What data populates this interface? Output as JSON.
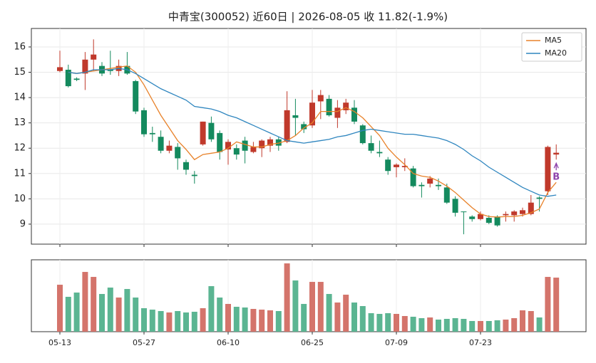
{
  "chart_data": {
    "type": "candlestick",
    "title": "中青宝(300052) 近60日 | 2026-08-05 收 11.82(-1.9%)",
    "categories": [
      "05-13",
      null,
      null,
      null,
      null,
      null,
      null,
      null,
      null,
      null,
      "05-27",
      null,
      null,
      null,
      null,
      null,
      null,
      null,
      null,
      null,
      "06-10",
      null,
      null,
      null,
      null,
      null,
      null,
      null,
      null,
      null,
      "06-25",
      null,
      null,
      null,
      null,
      null,
      null,
      null,
      null,
      null,
      "07-09",
      null,
      null,
      null,
      null,
      null,
      null,
      null,
      null,
      null,
      "07-23",
      null,
      null,
      null,
      null,
      null,
      null,
      null,
      null,
      null
    ],
    "open": [
      15.05,
      15.1,
      14.75,
      14.95,
      15.5,
      15.25,
      15.1,
      15.05,
      15.25,
      14.65,
      13.5,
      12.6,
      12.45,
      11.9,
      12.05,
      11.45,
      10.95,
      12.15,
      13.0,
      12.6,
      11.95,
      12.0,
      12.3,
      11.85,
      12.0,
      12.1,
      12.35,
      12.25,
      13.3,
      12.95,
      12.9,
      13.85,
      13.95,
      13.2,
      13.5,
      13.6,
      12.9,
      12.2,
      11.85,
      11.55,
      11.25,
      11.25,
      11.2,
      10.55,
      10.6,
      10.55,
      10.45,
      10.0,
      9.5,
      9.3,
      9.2,
      9.25,
      9.3,
      9.35,
      9.35,
      9.4,
      9.4,
      10.05,
      10.3,
      11.75
    ],
    "high": [
      15.85,
      15.3,
      14.8,
      15.8,
      16.3,
      15.4,
      15.85,
      15.5,
      15.8,
      14.7,
      13.6,
      12.85,
      12.7,
      12.3,
      12.2,
      11.55,
      11.1,
      13.05,
      13.25,
      12.7,
      12.35,
      12.15,
      12.45,
      12.25,
      12.35,
      12.45,
      12.45,
      14.25,
      13.95,
      13.05,
      14.3,
      14.3,
      14.1,
      13.9,
      13.95,
      13.9,
      12.95,
      12.5,
      12.3,
      11.65,
      11.4,
      11.6,
      11.3,
      10.65,
      10.9,
      10.8,
      10.6,
      10.1,
      9.5,
      9.35,
      9.5,
      9.35,
      9.35,
      9.5,
      9.55,
      9.65,
      10.15,
      10.1,
      12.1,
      12.15
    ],
    "low": [
      15.0,
      14.4,
      14.65,
      14.3,
      15.05,
      14.85,
      14.9,
      14.85,
      14.9,
      13.35,
      12.45,
      12.25,
      11.8,
      11.8,
      11.15,
      10.95,
      10.6,
      12.1,
      12.25,
      11.55,
      11.35,
      11.55,
      11.4,
      11.8,
      11.65,
      11.85,
      11.9,
      12.2,
      12.5,
      12.6,
      12.8,
      13.15,
      13.25,
      12.8,
      13.35,
      12.95,
      12.15,
      11.8,
      11.65,
      10.95,
      10.85,
      11.1,
      10.45,
      10.05,
      10.45,
      10.35,
      9.8,
      9.3,
      8.6,
      9.1,
      9.15,
      9.0,
      8.9,
      9.1,
      9.1,
      9.3,
      9.35,
      9.5,
      10.15,
      11.55
    ],
    "close": [
      15.2,
      14.45,
      14.7,
      15.5,
      15.7,
      14.95,
      15.05,
      15.25,
      14.95,
      13.45,
      12.55,
      12.55,
      11.9,
      12.1,
      11.6,
      11.15,
      10.9,
      13.05,
      12.35,
      11.85,
      12.25,
      11.75,
      11.9,
      12.05,
      12.3,
      12.35,
      12.1,
      13.5,
      13.2,
      12.75,
      13.8,
      14.1,
      13.3,
      13.6,
      13.8,
      13.05,
      12.2,
      11.9,
      11.8,
      11.1,
      11.35,
      11.3,
      10.5,
      10.5,
      10.8,
      10.5,
      9.85,
      9.45,
      9.48,
      9.2,
      9.4,
      9.05,
      8.95,
      9.4,
      9.5,
      9.55,
      9.85,
      10.0,
      12.05,
      11.82
    ],
    "up_color": "#c0392b",
    "down_color": "#148a5e",
    "series": [
      {
        "name": "MA5",
        "color": "#e8822a",
        "values": [
          null,
          15.0,
          14.95,
          15.0,
          15.05,
          15.1,
          15.15,
          15.2,
          15.25,
          15.0,
          14.5,
          13.9,
          13.3,
          12.8,
          12.3,
          11.95,
          11.55,
          11.75,
          11.8,
          11.85,
          12.0,
          12.25,
          12.15,
          12.05,
          12.05,
          12.15,
          12.2,
          12.3,
          12.5,
          12.8,
          13.0,
          13.45,
          13.45,
          13.45,
          13.6,
          13.45,
          13.2,
          12.85,
          12.5,
          12.0,
          11.65,
          11.35,
          11.0,
          10.9,
          10.85,
          10.7,
          10.5,
          10.25,
          9.95,
          9.65,
          9.4,
          9.3,
          9.28,
          9.3,
          9.3,
          9.35,
          9.45,
          9.6,
          10.25,
          10.65
        ]
      },
      {
        "name": "MA20",
        "color": "#2f86bf",
        "values": [
          null,
          15.0,
          14.95,
          15.0,
          15.1,
          15.1,
          15.1,
          15.15,
          15.1,
          14.95,
          14.75,
          14.55,
          14.35,
          14.2,
          14.05,
          13.9,
          13.65,
          13.6,
          13.55,
          13.45,
          13.3,
          13.2,
          13.05,
          12.9,
          12.75,
          12.6,
          12.45,
          12.3,
          12.25,
          12.2,
          12.25,
          12.3,
          12.35,
          12.45,
          12.5,
          12.6,
          12.7,
          12.75,
          12.7,
          12.65,
          12.6,
          12.55,
          12.55,
          12.5,
          12.45,
          12.4,
          12.3,
          12.15,
          11.95,
          11.7,
          11.5,
          11.25,
          11.05,
          10.85,
          10.65,
          10.45,
          10.3,
          10.15,
          10.1,
          10.15
        ]
      }
    ],
    "volume": {
      "up_color": "#d4746b",
      "down_color": "#5bb592",
      "values": [
        66,
        49,
        55,
        84,
        77,
        53,
        62,
        48,
        60,
        48,
        33,
        31,
        29,
        27,
        29,
        27,
        28,
        33,
        64,
        48,
        39,
        35,
        34,
        32,
        31,
        30,
        29,
        96,
        72,
        39,
        70,
        70,
        53,
        41,
        52,
        41,
        36,
        26,
        25,
        26,
        25,
        22,
        21,
        19,
        20,
        17,
        18,
        19,
        18,
        15,
        15,
        15,
        16,
        17,
        19,
        30,
        29,
        20,
        77,
        76
      ]
    },
    "annotation": "B",
    "annotation_color": "#8e44ad",
    "ylim": [
      8.21,
      16.73
    ],
    "yticks": [
      9,
      10,
      11,
      12,
      13,
      14,
      15,
      16
    ],
    "grid": true,
    "legend": "upper right"
  }
}
